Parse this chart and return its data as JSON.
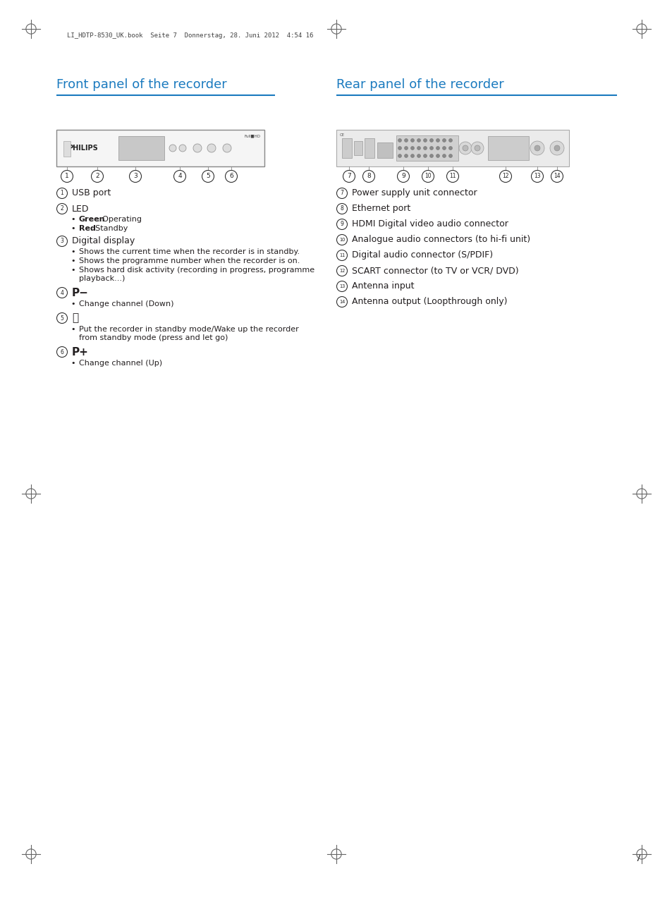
{
  "page_bg": "#ffffff",
  "header_line_color": "#1a7abf",
  "title_color": "#1a7abf",
  "text_color": "#231f20",
  "left_title": "Front panel of the recorder",
  "right_title": "Rear panel of the recorder",
  "right_items": [
    {
      "num": "7",
      "label": "Power supply unit connector"
    },
    {
      "num": "8",
      "label": "Ethernet port"
    },
    {
      "num": "9",
      "label": "HDMI Digital video audio connector"
    },
    {
      "num": "10",
      "label": "Analogue audio connectors (to hi-fi unit)"
    },
    {
      "num": "11",
      "label": "Digital audio connector (S/PDIF)"
    },
    {
      "num": "12",
      "label": "SCART connector (to TV or VCR/ DVD)"
    },
    {
      "num": "13",
      "label": "Antenna input"
    },
    {
      "num": "14",
      "label": "Antenna output (Loopthrough only)"
    }
  ],
  "page_num": "7",
  "header_text": "LI_HDTP-8530_UK.book  Seite 7  Donnerstag, 28. Juni 2012  4:54 16"
}
